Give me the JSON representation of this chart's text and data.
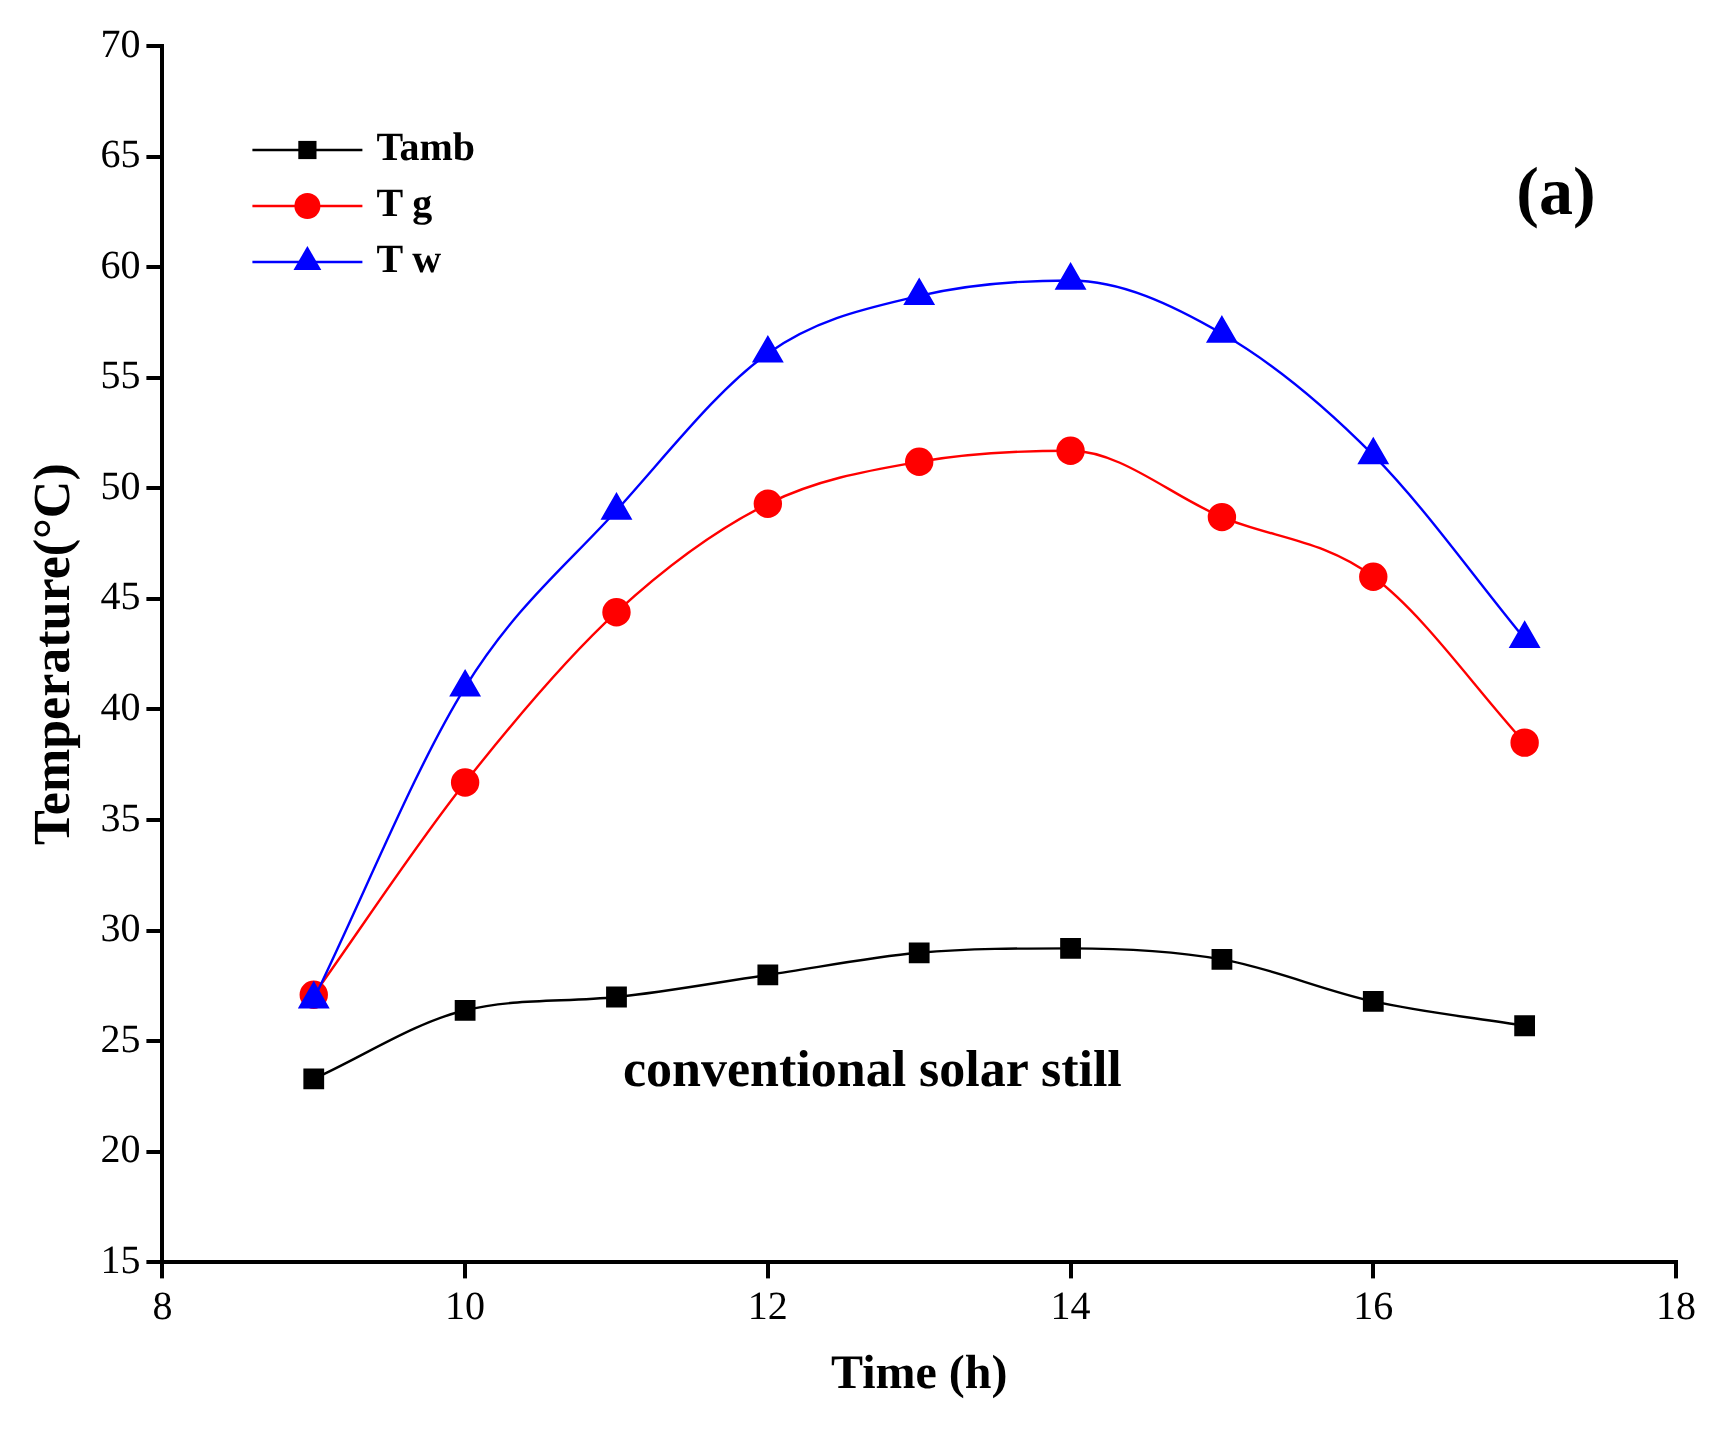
{
  "chart_data": {
    "type": "line",
    "xlabel": "Time (h)",
    "ylabel": "Temperature(°C)",
    "x": [
      9,
      10,
      11,
      12,
      13,
      14,
      15,
      16,
      17
    ],
    "series": [
      {
        "name": "Tamb",
        "color": "#000000",
        "marker": "square",
        "values": [
          23.3,
          26.4,
          27.0,
          28.0,
          29.0,
          29.2,
          28.7,
          26.8,
          25.7
        ]
      },
      {
        "name": "T g",
        "color": "#ff0000",
        "marker": "circle",
        "values": [
          27.1,
          36.7,
          44.4,
          49.3,
          51.2,
          51.7,
          48.7,
          46.0,
          38.5
        ]
      },
      {
        "name": "T w",
        "color": "#0000ff",
        "marker": "triangle",
        "values": [
          26.9,
          41.0,
          49.0,
          56.1,
          58.7,
          59.4,
          57.0,
          51.5,
          43.2
        ]
      }
    ],
    "xlim": [
      8,
      18
    ],
    "xticks": [
      8,
      10,
      12,
      14,
      16,
      18
    ],
    "ylim": [
      15,
      70
    ],
    "yticks": [
      15,
      20,
      25,
      30,
      35,
      40,
      45,
      50,
      55,
      60,
      65,
      70
    ],
    "grid": false,
    "legend": "top left",
    "line_style": "solid",
    "annotations": [
      "(a)",
      "conventional solar still"
    ]
  }
}
